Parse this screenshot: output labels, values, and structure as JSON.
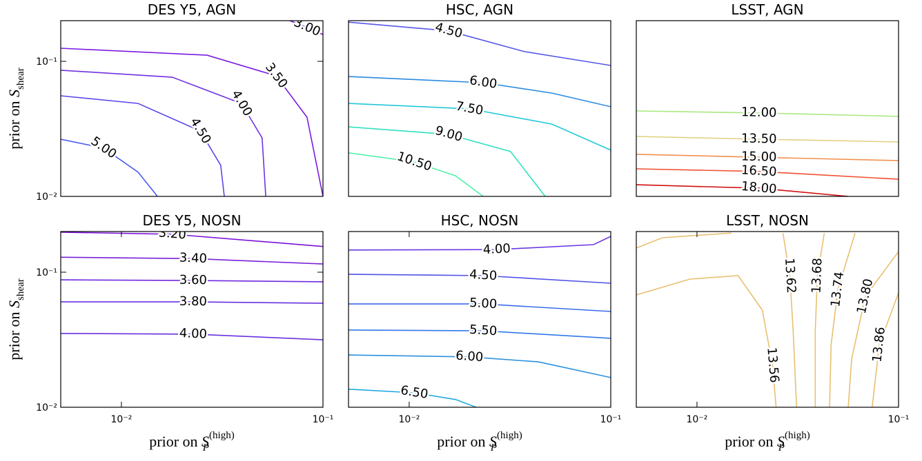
{
  "chart_data": [
    {
      "type": "contour",
      "title": "DES Y5, AGN",
      "xscale": "log",
      "yscale": "log",
      "xlim": [
        0.005,
        0.1
      ],
      "ylim": [
        0.01,
        0.2
      ],
      "yticks": [
        {
          "value": 0.01,
          "label": "10⁻²"
        },
        {
          "value": 0.1,
          "label": "10⁻¹"
        }
      ],
      "ylabel": {
        "text": "prior on ",
        "symbol": "S",
        "sub": "shear"
      },
      "contours": [
        {
          "level": 3,
          "level_label": "3.00",
          "color": "#7a10d8",
          "x": [
            0.0685,
            0.0833,
            0.1
          ],
          "y": [
            0.2,
            0.178,
            0.158
          ]
        },
        {
          "level": 3.5,
          "level_label": "3.50",
          "color": "#7a1ce0",
          "x": [
            0.005,
            0.0266,
            0.0585,
            0.0833,
            0.1
          ],
          "y": [
            0.125,
            0.111,
            0.0781,
            0.0386,
            0.01
          ]
        },
        {
          "level": 4,
          "level_label": "4.00",
          "color": "#7030e0",
          "x": [
            0.005,
            0.0179,
            0.0394,
            0.0499,
            0.052
          ],
          "y": [
            0.0859,
            0.0762,
            0.0488,
            0.0271,
            0.01
          ]
        },
        {
          "level": 4.5,
          "level_label": "4.50",
          "color": "#5a48e8",
          "x": [
            0.005,
            0.0121,
            0.0246,
            0.0311,
            0.0324
          ],
          "y": [
            0.0556,
            0.0488,
            0.0305,
            0.017,
            0.01
          ]
        },
        {
          "level": 5,
          "level_label": "5.00",
          "color": "#4a5cf0",
          "x": [
            0.005,
            0.00815,
            0.0121,
            0.0151
          ],
          "y": [
            0.0265,
            0.0228,
            0.0151,
            0.01
          ]
        }
      ]
    },
    {
      "type": "contour",
      "title": "HSC, AGN",
      "xscale": "log",
      "yscale": "log",
      "xlim": [
        0.005,
        0.1
      ],
      "ylim": [
        0.01,
        0.2
      ],
      "contours": [
        {
          "level": 4.5,
          "level_label": "4.50",
          "color": "#5555e8",
          "x": [
            0.005,
            0.0157,
            0.0373,
            0.1
          ],
          "y": [
            0.195,
            0.168,
            0.118,
            0.0932
          ]
        },
        {
          "level": 6,
          "level_label": "6.00",
          "color": "#2a8ae0",
          "x": [
            0.005,
            0.0233,
            0.0511,
            0.1
          ],
          "y": [
            0.0771,
            0.0695,
            0.0582,
            0.0461
          ]
        },
        {
          "level": 7.5,
          "level_label": "7.50",
          "color": "#20c8d8",
          "x": [
            0.005,
            0.0199,
            0.0511,
            0.1
          ],
          "y": [
            0.0488,
            0.0445,
            0.0343,
            0.022
          ]
        },
        {
          "level": 9,
          "level_label": "9.00",
          "color": "#30e0c0",
          "x": [
            0.005,
            0.0157,
            0.0318,
            0.0473
          ],
          "y": [
            0.0327,
            0.0288,
            0.0215,
            0.01
          ]
        },
        {
          "level": 10.5,
          "level_label": "10.50",
          "color": "#50f0a8",
          "x": [
            0.005,
            0.0106,
            0.017,
            0.0233
          ],
          "y": [
            0.021,
            0.018,
            0.0142,
            0.01
          ]
        }
      ]
    },
    {
      "type": "contour",
      "title": "LSST, AGN",
      "xscale": "log",
      "yscale": "log",
      "xlim": [
        0.005,
        0.1
      ],
      "ylim": [
        0.01,
        0.2
      ],
      "contours": [
        {
          "level": 12,
          "level_label": "12.00",
          "color": "#a8e880",
          "x": [
            0.005,
            0.0203,
            0.1
          ],
          "y": [
            0.0429,
            0.0415,
            0.0391
          ]
        },
        {
          "level": 13.5,
          "level_label": "13.50",
          "color": "#e0d080",
          "x": [
            0.005,
            0.0203,
            0.1
          ],
          "y": [
            0.0278,
            0.0265,
            0.0253
          ]
        },
        {
          "level": 15,
          "level_label": "15.00",
          "color": "#f09050",
          "x": [
            0.005,
            0.0203,
            0.1
          ],
          "y": [
            0.0205,
            0.0195,
            0.0184
          ]
        },
        {
          "level": 16.5,
          "level_label": "16.50",
          "color": "#f05030",
          "x": [
            0.005,
            0.0203,
            0.1
          ],
          "y": [
            0.016,
            0.0153,
            0.0134
          ]
        },
        {
          "level": 18,
          "level_label": "18.00",
          "color": "#d01010",
          "x": [
            0.005,
            0.0203,
            0.0563
          ],
          "y": [
            0.0122,
            0.0115,
            0.01
          ]
        }
      ]
    },
    {
      "type": "contour",
      "title": "DES Y5, NOSN",
      "xscale": "log",
      "yscale": "log",
      "xlim": [
        0.005,
        0.1
      ],
      "ylim": [
        0.01,
        0.2
      ],
      "xticks": [
        {
          "value": 0.01,
          "label": "10⁻²"
        },
        {
          "value": 0.1,
          "label": "10⁻¹"
        }
      ],
      "yticks": [
        {
          "value": 0.01,
          "label": "10⁻²"
        },
        {
          "value": 0.1,
          "label": "10⁻¹"
        }
      ],
      "xlabel": {
        "text": "prior on ",
        "symbol": "S",
        "sub": "P",
        "sup": "(high)"
      },
      "ylabel": {
        "text": "prior on ",
        "symbol": "S",
        "sub": "shear"
      },
      "contours": [
        {
          "level": 3.2,
          "level_label": "3.20",
          "color": "#7a10d8",
          "x": [
            0.005,
            0.0179,
            0.1
          ],
          "y": [
            0.198,
            0.191,
            0.155
          ]
        },
        {
          "level": 3.4,
          "level_label": "3.40",
          "color": "#7820d8",
          "x": [
            0.005,
            0.0227,
            0.1
          ],
          "y": [
            0.129,
            0.126,
            0.115
          ]
        },
        {
          "level": 3.6,
          "level_label": "3.60",
          "color": "#7028e0",
          "x": [
            0.005,
            0.0227,
            0.1
          ],
          "y": [
            0.0878,
            0.0868,
            0.0849
          ]
        },
        {
          "level": 3.8,
          "level_label": "3.80",
          "color": "#6a30e0",
          "x": [
            0.005,
            0.0227,
            0.1
          ],
          "y": [
            0.0603,
            0.0603,
            0.0589
          ]
        },
        {
          "level": 4,
          "level_label": "4.00",
          "color": "#6a30e0",
          "x": [
            0.005,
            0.0227,
            0.1
          ],
          "y": [
            0.0352,
            0.0348,
            0.0316
          ]
        }
      ]
    },
    {
      "type": "contour",
      "title": "HSC, NOSN",
      "xscale": "log",
      "yscale": "log",
      "xlim": [
        0.005,
        0.1
      ],
      "ylim": [
        0.01,
        0.2
      ],
      "xticks": [
        {
          "value": 0.01,
          "label": "10⁻²"
        },
        {
          "value": 0.1,
          "label": "10⁻¹"
        }
      ],
      "xlabel": {
        "text": "prior on ",
        "symbol": "S",
        "sub": "P",
        "sup": "(high)"
      },
      "contours": [
        {
          "level": 4,
          "level_label": "4.00",
          "color": "#6a38e0",
          "x": [
            0.005,
            0.0272,
            0.0821,
            0.1
          ],
          "y": [
            0.146,
            0.147,
            0.16,
            0.184
          ]
        },
        {
          "level": 4.5,
          "level_label": "4.50",
          "color": "#5050e8",
          "x": [
            0.005,
            0.0233,
            0.1
          ],
          "y": [
            0.0965,
            0.0943,
            0.0829
          ]
        },
        {
          "level": 5,
          "level_label": "5.00",
          "color": "#3a6ae8",
          "x": [
            0.005,
            0.0233,
            0.1
          ],
          "y": [
            0.0582,
            0.0582,
            0.0512
          ]
        },
        {
          "level": 5.5,
          "level_label": "5.50",
          "color": "#3078e8",
          "x": [
            0.005,
            0.0233,
            0.1
          ],
          "y": [
            0.0373,
            0.0368,
            0.0324
          ]
        },
        {
          "level": 6,
          "level_label": "6.00",
          "color": "#2890e0",
          "x": [
            0.005,
            0.0199,
            0.0437,
            0.1
          ],
          "y": [
            0.0244,
            0.0236,
            0.0217,
            0.0166
          ]
        },
        {
          "level": 6.5,
          "level_label": "6.50",
          "color": "#20a8e0",
          "x": [
            0.005,
            0.0106,
            0.017,
            0.0215
          ],
          "y": [
            0.0136,
            0.0128,
            0.0114,
            0.01
          ]
        }
      ]
    },
    {
      "type": "contour",
      "title": "LSST, NOSN",
      "xscale": "log",
      "yscale": "log",
      "xlim": [
        0.005,
        0.1
      ],
      "ylim": [
        0.01,
        0.2
      ],
      "xticks": [
        {
          "value": 0.01,
          "label": "10⁻²"
        },
        {
          "value": 0.1,
          "label": "10⁻¹"
        }
      ],
      "xlabel": {
        "text": "prior on ",
        "symbol": "S",
        "sub": "P",
        "sup": "(high)"
      },
      "contours": [
        {
          "level": 13.56,
          "level_label": "13.56",
          "color": "#e8c070",
          "x": [
            0.005,
            0.00924,
            0.016,
            0.0211,
            0.0237,
            0.0247,
            null,
            0.005,
            0.00674,
            0.0148
          ],
          "y": [
            0.0679,
            0.0889,
            0.0943,
            0.0524,
            0.0205,
            0.01,
            null,
            0.151,
            0.18,
            0.195
          ]
        },
        {
          "level": 13.62,
          "level_label": "13.62",
          "color": "#e8c070",
          "x": [
            0.0267,
            0.0289,
            0.03,
            0.0312
          ],
          "y": [
            0.195,
            0.0943,
            0.0368,
            0.01
          ]
        },
        {
          "level": 13.68,
          "level_label": "13.68",
          "color": "#e8c070",
          "x": [
            0.0428,
            0.0396,
            0.0386,
            0.0386
          ],
          "y": [
            0.195,
            0.0943,
            0.0368,
            0.01
          ]
        },
        {
          "level": 13.74,
          "level_label": "13.74",
          "color": "#e8c070",
          "x": [
            0.0609,
            0.05,
            0.0463,
            0.0455
          ],
          "y": [
            0.195,
            0.0746,
            0.0291,
            0.01
          ]
        },
        {
          "level": 13.8,
          "level_label": "13.80",
          "color": "#e8c070",
          "x": [
            0.1,
            0.0685,
            0.0586,
            0.0563
          ],
          "y": [
            0.142,
            0.0663,
            0.023,
            0.01
          ]
        },
        {
          "level": 13.86,
          "level_label": "13.86",
          "color": "#e8c070",
          "x": [
            0.1,
            0.0803,
            0.074
          ],
          "y": [
            0.0703,
            0.0291,
            0.01
          ]
        }
      ]
    }
  ]
}
